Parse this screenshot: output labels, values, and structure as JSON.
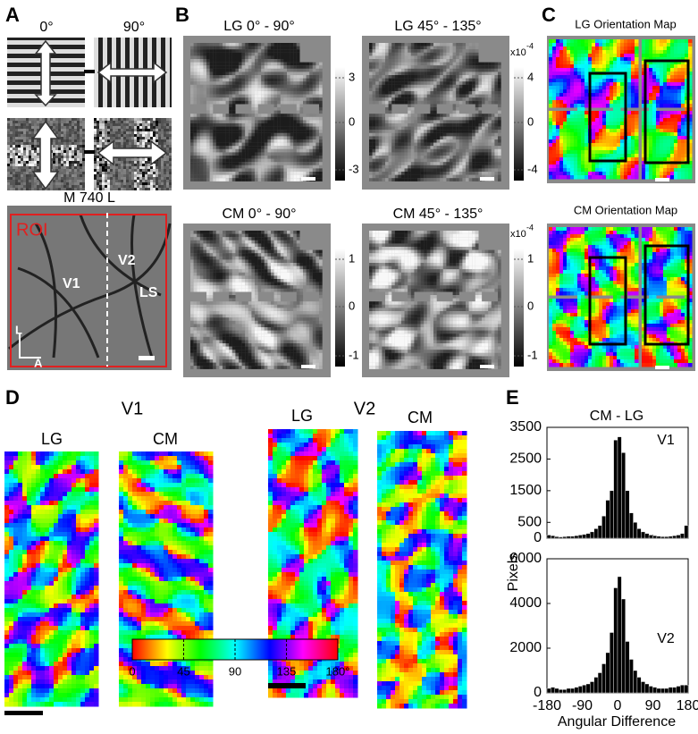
{
  "panel_a": {
    "label": "A",
    "left_angle": "0°",
    "right_angle": "90°",
    "image_title": "M 740 L",
    "roi": "ROI",
    "v1": "V1",
    "v2": "V2",
    "ls": "LS",
    "axis_l": "L",
    "axis_a": "A"
  },
  "panel_b": {
    "label": "B",
    "maps": [
      {
        "title": "LG 0° - 90°"
      },
      {
        "title": "LG 45° - 135°"
      },
      {
        "title": "CM 0° - 90°"
      },
      {
        "title": "CM 45° - 135°"
      }
    ],
    "colorbars": [
      {
        "ticks": [
          "3",
          "0",
          "-3"
        ]
      },
      {
        "ticks": [
          "4",
          "0",
          "-4"
        ],
        "scale": "x10",
        "exponent": "-4"
      },
      {
        "ticks": [
          "1",
          "0",
          "-1"
        ]
      },
      {
        "ticks": [
          "1",
          "0",
          "-1"
        ],
        "scale": "x10",
        "exponent": "-4"
      }
    ]
  },
  "panel_c": {
    "label": "C",
    "top_title": "LG Orientation Map",
    "bottom_title": "CM Orientation Map"
  },
  "panel_d": {
    "label": "D",
    "v1": "V1",
    "v2": "V2",
    "v1_left": "LG",
    "v1_right": "CM",
    "v2_left": "LG",
    "v2_right": "CM",
    "colorbar_ticks": [
      "0",
      "45",
      "90",
      "135",
      "180°"
    ]
  },
  "panel_e": {
    "label": "E",
    "title": "CM  -  LG",
    "ylabel": "Pixels",
    "xlabel": "Angular Difference"
  },
  "chart_data": [
    {
      "type": "histogram",
      "title": "V1",
      "color": "#000000",
      "bins": [
        -180,
        -170,
        -160,
        -150,
        -140,
        -130,
        -120,
        -110,
        -100,
        -90,
        -80,
        -70,
        -60,
        -50,
        -40,
        -30,
        -20,
        -10,
        0,
        10,
        20,
        30,
        40,
        50,
        60,
        70,
        80,
        90,
        100,
        110,
        120,
        130,
        140,
        150,
        160,
        170,
        180
      ],
      "values": [
        100,
        80,
        50,
        40,
        50,
        60,
        60,
        80,
        100,
        120,
        150,
        200,
        300,
        400,
        700,
        1200,
        1500,
        3100,
        3200,
        2700,
        1500,
        800,
        500,
        300,
        200,
        150,
        100,
        80,
        60,
        50,
        50,
        60,
        80,
        100,
        150,
        400
      ],
      "xlim": [
        -180,
        180
      ],
      "xticks": [
        -180,
        -90,
        0,
        90,
        180
      ],
      "ylim": [
        0,
        3500
      ],
      "yticks": [
        0,
        500,
        1500,
        2500,
        3500
      ]
    },
    {
      "type": "histogram",
      "title": "V2",
      "color": "#000000",
      "bins": [
        -180,
        -170,
        -160,
        -150,
        -140,
        -130,
        -120,
        -110,
        -100,
        -90,
        -80,
        -70,
        -60,
        -50,
        -40,
        -30,
        -20,
        -10,
        0,
        10,
        20,
        30,
        40,
        50,
        60,
        70,
        80,
        90,
        100,
        110,
        120,
        130,
        140,
        150,
        160,
        170,
        180
      ],
      "values": [
        200,
        250,
        200,
        150,
        150,
        200,
        200,
        250,
        300,
        350,
        400,
        500,
        700,
        900,
        1300,
        1800,
        2700,
        4700,
        5200,
        4200,
        2300,
        1500,
        1000,
        700,
        500,
        400,
        300,
        250,
        200,
        200,
        200,
        250,
        250,
        300,
        350,
        350
      ],
      "xlim": [
        -180,
        180
      ],
      "xticks": [
        -180,
        -90,
        0,
        90,
        180
      ],
      "ylim": [
        0,
        6000
      ],
      "yticks": [
        0,
        2000,
        4000,
        6000
      ]
    }
  ]
}
